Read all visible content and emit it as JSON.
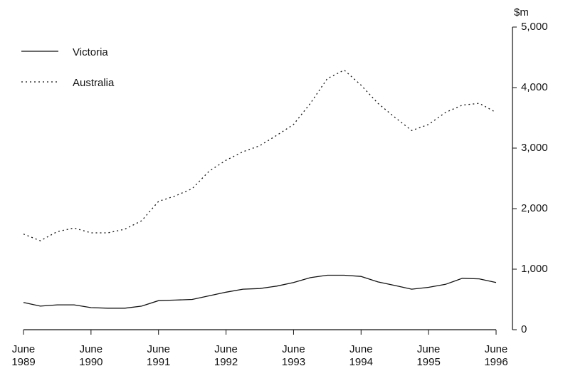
{
  "chart_data": {
    "type": "line",
    "y_label": "$m",
    "x": [
      1989.5,
      1989.75,
      1990,
      1990.25,
      1990.5,
      1990.75,
      1991,
      1991.25,
      1991.5,
      1991.75,
      1992,
      1992.25,
      1992.5,
      1992.75,
      1993,
      1993.25,
      1993.5,
      1993.75,
      1994,
      1994.25,
      1994.5,
      1994.75,
      1995,
      1995.25,
      1995.5,
      1995.75,
      1996,
      1996.25,
      1996.5
    ],
    "series": [
      {
        "name": "Victoria",
        "color": "#111111",
        "style": "solid",
        "values": [
          450,
          390,
          410,
          410,
          365,
          355,
          355,
          390,
          480,
          490,
          500,
          560,
          620,
          670,
          680,
          720,
          780,
          860,
          900,
          900,
          880,
          790,
          730,
          670,
          700,
          750,
          850,
          840,
          780
        ]
      },
      {
        "name": "Australia",
        "color": "#111111",
        "style": "dotted",
        "values": [
          1580,
          1470,
          1620,
          1680,
          1600,
          1600,
          1660,
          1800,
          2120,
          2210,
          2330,
          2620,
          2800,
          2940,
          3040,
          3210,
          3390,
          3740,
          4150,
          4290,
          4040,
          3740,
          3510,
          3290,
          3390,
          3590,
          3710,
          3740,
          3590
        ]
      }
    ],
    "xlim": [
      1989.5,
      1996.5
    ],
    "xticks": [
      {
        "value": 1989.5,
        "label": "June 1989"
      },
      {
        "value": 1990.5,
        "label": "June 1990"
      },
      {
        "value": 1991.5,
        "label": "June 1991"
      },
      {
        "value": 1992.5,
        "label": "June 1992"
      },
      {
        "value": 1993.5,
        "label": "June 1993"
      },
      {
        "value": 1994.5,
        "label": "June 1994"
      },
      {
        "value": 1995.5,
        "label": "June 1995"
      },
      {
        "value": 1996.5,
        "label": "June 1996"
      }
    ],
    "ylim": [
      0,
      5000
    ],
    "yticks": [
      0,
      {
        "value": 1000,
        "label": "1,000"
      },
      {
        "value": 2000,
        "label": "2,000"
      },
      {
        "value": 3000,
        "label": "3,000"
      },
      {
        "value": 4000,
        "label": "4,000"
      },
      {
        "value": 5000,
        "label": "5,000"
      }
    ],
    "legend": "top-left"
  }
}
